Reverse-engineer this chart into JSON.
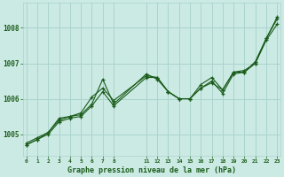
{
  "xlabel": "Graphe pression niveau de la mer (hPa)",
  "background_color": "#cceae4",
  "grid_color": "#aad4cc",
  "line_color": "#1a5c1a",
  "ylim": [
    1004.4,
    1008.7
  ],
  "yticks": [
    1005,
    1006,
    1007,
    1008
  ],
  "xlim": [
    -0.3,
    23.3
  ],
  "xtick_positions": [
    0,
    1,
    2,
    3,
    4,
    5,
    6,
    7,
    8,
    11,
    12,
    13,
    14,
    15,
    16,
    17,
    18,
    19,
    20,
    21,
    22,
    23
  ],
  "series1_x": [
    0,
    1,
    2,
    3,
    4,
    5,
    6,
    7,
    8,
    11,
    12,
    13,
    14,
    15,
    16,
    17,
    18,
    19,
    20,
    21,
    22,
    23
  ],
  "series1_y": [
    1004.7,
    1004.85,
    1005.05,
    1005.4,
    1005.5,
    1005.55,
    1005.85,
    1006.55,
    1005.85,
    1006.7,
    1006.55,
    1006.2,
    1006.0,
    1006.0,
    1006.4,
    1006.6,
    1006.25,
    1006.75,
    1006.8,
    1007.0,
    1007.7,
    1008.3
  ],
  "series2_x": [
    0,
    1,
    2,
    3,
    4,
    5,
    6,
    7,
    8,
    11,
    12,
    13,
    14,
    15,
    16,
    17,
    18,
    19,
    20,
    21,
    22,
    23
  ],
  "series2_y": [
    1004.75,
    1004.9,
    1005.05,
    1005.45,
    1005.5,
    1005.6,
    1006.05,
    1006.3,
    1005.95,
    1006.65,
    1006.6,
    1006.2,
    1006.0,
    1006.0,
    1006.3,
    1006.45,
    1006.25,
    1006.75,
    1006.75,
    1007.05,
    1007.7,
    1008.25
  ],
  "series3_x": [
    0,
    1,
    2,
    3,
    4,
    5,
    6,
    7,
    8,
    11,
    12,
    13,
    14,
    15,
    16,
    17,
    18,
    19,
    20,
    21,
    22,
    23
  ],
  "series3_y": [
    1004.7,
    1004.85,
    1005.0,
    1005.35,
    1005.45,
    1005.5,
    1005.8,
    1006.2,
    1005.8,
    1006.6,
    1006.6,
    1006.2,
    1006.0,
    1006.0,
    1006.3,
    1006.5,
    1006.15,
    1006.7,
    1006.75,
    1007.0,
    1007.65,
    1008.1
  ]
}
